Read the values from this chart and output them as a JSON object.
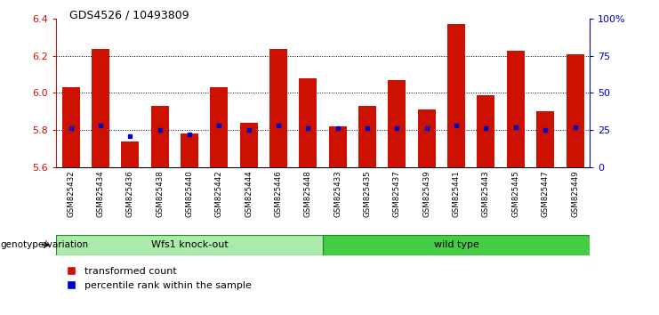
{
  "title": "GDS4526 / 10493809",
  "samples": [
    "GSM825432",
    "GSM825434",
    "GSM825436",
    "GSM825438",
    "GSM825440",
    "GSM825442",
    "GSM825444",
    "GSM825446",
    "GSM825448",
    "GSM825433",
    "GSM825435",
    "GSM825437",
    "GSM825439",
    "GSM825441",
    "GSM825443",
    "GSM825445",
    "GSM825447",
    "GSM825449"
  ],
  "transformed_counts": [
    6.03,
    6.24,
    5.74,
    5.93,
    5.78,
    6.03,
    5.84,
    6.24,
    6.08,
    5.82,
    5.93,
    6.07,
    5.91,
    6.37,
    5.99,
    6.23,
    5.9,
    6.21
  ],
  "percentile_ranks": [
    26,
    28,
    21,
    25,
    22,
    28,
    25,
    28,
    26,
    26,
    26,
    26,
    26,
    28,
    26,
    27,
    25,
    27
  ],
  "groups": [
    "Wfs1 knock-out",
    "Wfs1 knock-out",
    "Wfs1 knock-out",
    "Wfs1 knock-out",
    "Wfs1 knock-out",
    "Wfs1 knock-out",
    "Wfs1 knock-out",
    "Wfs1 knock-out",
    "Wfs1 knock-out",
    "wild type",
    "wild type",
    "wild type",
    "wild type",
    "wild type",
    "wild type",
    "wild type",
    "wild type",
    "wild type"
  ],
  "ymin": 5.6,
  "ymax": 6.4,
  "yticks_left": [
    5.6,
    5.8,
    6.0,
    6.2,
    6.4
  ],
  "yticks_right": [
    0,
    25,
    50,
    75,
    100
  ],
  "bar_color": "#cc1100",
  "dot_color": "#0000cc",
  "group_colors": {
    "Wfs1 knock-out": "#aaeaaa",
    "wild type": "#44cc44"
  },
  "group_label": "genotype/variation",
  "legend_items": [
    "transformed count",
    "percentile rank within the sample"
  ],
  "tick_label_color_left": "#cc1100",
  "tick_label_color_right": "#0000cc",
  "grid_yticks": [
    5.8,
    6.0,
    6.2
  ]
}
